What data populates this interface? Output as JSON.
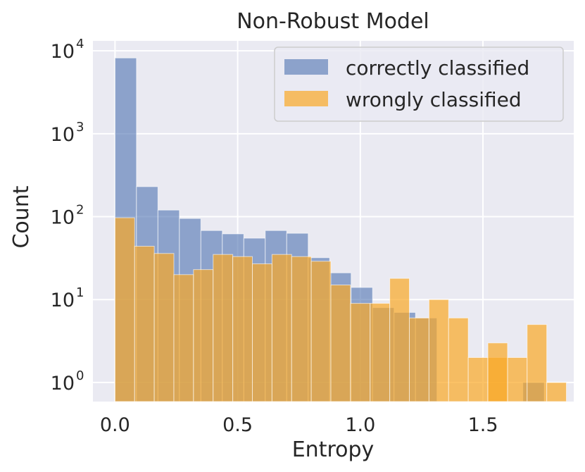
{
  "chart_data": {
    "type": "bar",
    "title": "Non-Robust Model",
    "xlabel": "Entropy",
    "ylabel": "Count",
    "xlim": [
      -0.09,
      1.87
    ],
    "ylim_log10": [
      -0.23,
      4.12
    ],
    "yscale": "log",
    "grid": true,
    "legend_position": "top-right",
    "background_color": "#eaeaf2",
    "grid_color": "#ffffff",
    "xticks": [
      {
        "value": 0.0,
        "label": "0.0"
      },
      {
        "value": 0.5,
        "label": "0.5"
      },
      {
        "value": 1.0,
        "label": "1.0"
      },
      {
        "value": 1.5,
        "label": "1.5"
      }
    ],
    "yticks": [
      {
        "value": 1,
        "base": "10",
        "exp": "0"
      },
      {
        "value": 10,
        "base": "10",
        "exp": "1"
      },
      {
        "value": 100,
        "base": "10",
        "exp": "2"
      },
      {
        "value": 1000,
        "base": "10",
        "exp": "3"
      },
      {
        "value": 10000,
        "base": "10",
        "exp": "4"
      }
    ],
    "series": [
      {
        "name": "correctly classified",
        "color": "#4c72b0",
        "opacity": 0.6,
        "bin_start": 0.0,
        "bin_width": 0.0875,
        "values": [
          8200,
          230,
          120,
          95,
          68,
          62,
          55,
          68,
          63,
          32,
          21,
          14,
          8,
          7,
          6,
          0,
          0,
          0,
          0,
          1
        ]
      },
      {
        "name": "wrongly classified",
        "color": "#f9a825",
        "opacity": 0.7,
        "bin_start": 0.0,
        "bin_width": 0.08,
        "values": [
          97,
          44,
          36,
          20,
          23,
          35,
          33,
          27,
          35,
          33,
          29,
          15,
          9,
          9,
          18,
          6,
          10,
          6,
          2,
          2,
          2,
          5,
          1,
          0,
          0,
          0,
          0,
          0,
          0,
          0
        ]
      }
    ],
    "wrong_extra": [
      {
        "x0": 1.52,
        "x1": 1.6,
        "value": 3
      }
    ]
  }
}
